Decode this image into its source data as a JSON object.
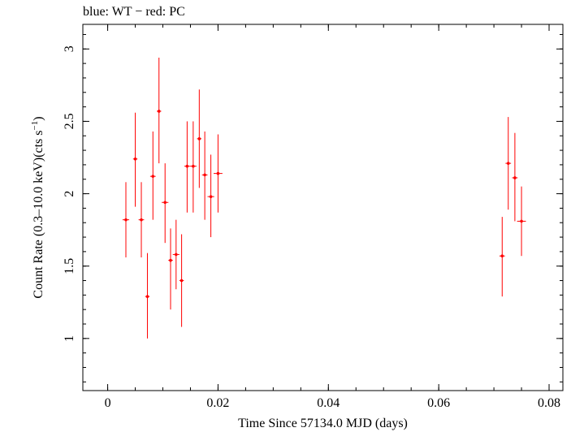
{
  "title": "blue: WT − red: PC",
  "chart_data": {
    "type": "scatter",
    "title": "blue: WT − red: PC",
    "xlabel": "Time Since 57134.0 MJD (days)",
    "ylabel_prefix": "Count Rate (0.3–10.0 keV)(cts s",
    "ylabel_sup": "−1",
    "ylabel_suffix": ")",
    "xlim": [
      -0.0045,
      0.0825
    ],
    "ylim": [
      0.64,
      3.17
    ],
    "xticks": [
      0,
      0.02,
      0.04,
      0.06,
      0.08
    ],
    "xtick_labels": [
      "0",
      "0.02",
      "0.04",
      "0.06",
      "0.08"
    ],
    "yticks": [
      1,
      1.5,
      2,
      2.5,
      3
    ],
    "ytick_labels": [
      "1",
      "1.5",
      "2",
      "2.5",
      "3"
    ],
    "grid": false,
    "series": [
      {
        "name": "PC",
        "color": "#ff0000",
        "points": [
          {
            "x": 0.0033,
            "y": 1.82,
            "xerr": 0.0006,
            "ylo": 1.56,
            "yhi": 2.08
          },
          {
            "x": 0.005,
            "y": 2.24,
            "xerr": 0.0004,
            "ylo": 1.91,
            "yhi": 2.56
          },
          {
            "x": 0.0061,
            "y": 1.82,
            "xerr": 0.0005,
            "ylo": 1.56,
            "yhi": 2.08
          },
          {
            "x": 0.0072,
            "y": 1.29,
            "xerr": 0.0004,
            "ylo": 1.0,
            "yhi": 1.59
          },
          {
            "x": 0.0082,
            "y": 2.12,
            "xerr": 0.0005,
            "ylo": 1.82,
            "yhi": 2.43
          },
          {
            "x": 0.0093,
            "y": 2.57,
            "xerr": 0.0004,
            "ylo": 2.21,
            "yhi": 2.94
          },
          {
            "x": 0.0104,
            "y": 1.94,
            "xerr": 0.0006,
            "ylo": 1.66,
            "yhi": 2.21
          },
          {
            "x": 0.0114,
            "y": 1.54,
            "xerr": 0.0004,
            "ylo": 1.2,
            "yhi": 1.76
          },
          {
            "x": 0.0124,
            "y": 1.58,
            "xerr": 0.0006,
            "ylo": 1.34,
            "yhi": 1.82
          },
          {
            "x": 0.0134,
            "y": 1.4,
            "xerr": 0.0004,
            "ylo": 1.08,
            "yhi": 1.72
          },
          {
            "x": 0.0144,
            "y": 2.19,
            "xerr": 0.0005,
            "ylo": 1.87,
            "yhi": 2.5
          },
          {
            "x": 0.0155,
            "y": 2.19,
            "xerr": 0.0006,
            "ylo": 1.87,
            "yhi": 2.5
          },
          {
            "x": 0.0166,
            "y": 2.38,
            "xerr": 0.0004,
            "ylo": 2.04,
            "yhi": 2.72
          },
          {
            "x": 0.0176,
            "y": 2.13,
            "xerr": 0.0005,
            "ylo": 1.82,
            "yhi": 2.43
          },
          {
            "x": 0.0187,
            "y": 1.98,
            "xerr": 0.0006,
            "ylo": 1.7,
            "yhi": 2.27
          },
          {
            "x": 0.02,
            "y": 2.14,
            "xerr": 0.0008,
            "ylo": 1.87,
            "yhi": 2.41
          },
          {
            "x": 0.0715,
            "y": 1.57,
            "xerr": 0.0005,
            "ylo": 1.29,
            "yhi": 1.84
          },
          {
            "x": 0.0726,
            "y": 2.21,
            "xerr": 0.0005,
            "ylo": 1.89,
            "yhi": 2.53
          },
          {
            "x": 0.0738,
            "y": 2.11,
            "xerr": 0.0005,
            "ylo": 1.81,
            "yhi": 2.42
          },
          {
            "x": 0.075,
            "y": 1.81,
            "xerr": 0.0008,
            "ylo": 1.57,
            "yhi": 2.05
          }
        ]
      }
    ]
  }
}
